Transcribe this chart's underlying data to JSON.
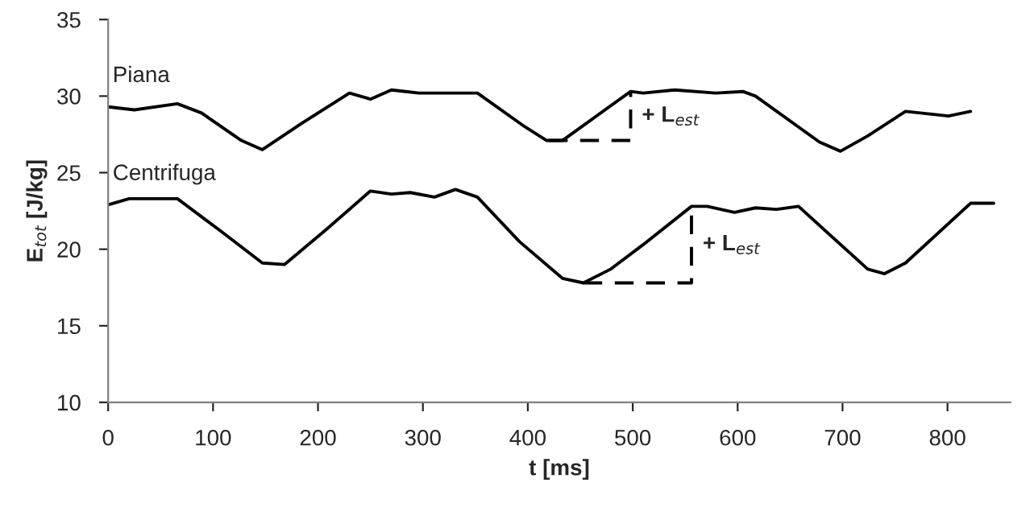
{
  "chart_data": {
    "type": "line",
    "xlabel": "t [ms]",
    "ylabel": "E$_{tot}$ [J/kg]",
    "xlim": [
      0,
      860
    ],
    "xticks": [
      0,
      100,
      200,
      300,
      400,
      500,
      600,
      700,
      800
    ],
    "ylim": [
      10,
      35
    ],
    "yticks": [
      10,
      15,
      20,
      25,
      30,
      35
    ],
    "grid": false,
    "legend": false,
    "marker": "none",
    "series": [
      {
        "name": "Piana",
        "color": "#000000",
        "x": [
          0,
          25,
          66,
          89,
          127,
          147,
          184,
          230,
          250,
          270,
          296,
          311,
          352,
          395,
          418,
          433,
          498,
          510,
          540,
          579,
          605,
          617,
          678,
          698,
          724,
          760,
          801,
          822
        ],
        "values": [
          29.3,
          29.1,
          29.5,
          28.9,
          27.1,
          26.5,
          28.2,
          30.2,
          29.8,
          30.4,
          30.2,
          30.2,
          30.2,
          28.1,
          27.1,
          27.1,
          30.3,
          30.2,
          30.4,
          30.2,
          30.3,
          30.0,
          27.0,
          26.4,
          27.4,
          29.0,
          28.7,
          29.0
        ]
      },
      {
        "name": "Centrifuga",
        "color": "#000000",
        "x": [
          0,
          20,
          66,
          107,
          147,
          168,
          208,
          250,
          270,
          288,
          311,
          331,
          352,
          392,
          433,
          453,
          479,
          510,
          556,
          571,
          597,
          617,
          637,
          658,
          724,
          740,
          760,
          822,
          844
        ],
        "values": [
          22.9,
          23.3,
          23.3,
          21.2,
          19.1,
          19.0,
          21.3,
          23.8,
          23.6,
          23.7,
          23.4,
          23.9,
          23.4,
          20.5,
          18.1,
          17.8,
          18.7,
          20.3,
          22.8,
          22.8,
          22.4,
          22.7,
          22.6,
          22.8,
          18.7,
          18.4,
          19.1,
          23.0,
          23.0
        ]
      },
      {
        "color": "#000000",
        "line_style": "dashed",
        "x": [
          420,
          498,
          498
        ],
        "values": [
          27.1,
          27.1,
          30.3
        ]
      },
      {
        "color": "#000000",
        "line_style": "dashed",
        "x": [
          453,
          556,
          556
        ],
        "values": [
          17.8,
          17.8,
          22.8
        ]
      }
    ],
    "annotations": [
      {
        "text": "+ L$_{est}$",
        "x": 498,
        "y": 28.7
      },
      {
        "text": "+ L$_{est}$",
        "x": 556,
        "y": 20.3
      }
    ]
  }
}
